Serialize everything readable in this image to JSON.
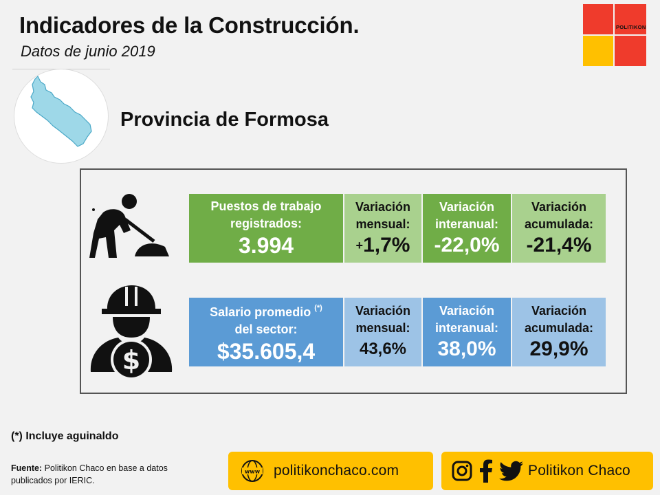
{
  "header": {
    "title": "Indicadores de la Construcción.",
    "subtitle": "Datos de junio 2019"
  },
  "logo": {
    "brand": "POLITIKON"
  },
  "province": "Provincia de Formosa",
  "employment": {
    "main_label_line1": "Puestos de trabajo",
    "main_label_line2": "registrados:",
    "main_value": "3.994",
    "monthly_label_line1": "Variación",
    "monthly_label_line2": "mensual:",
    "monthly_sign": "+",
    "monthly_value": "1,7%",
    "yoy_label_line1": "Variación",
    "yoy_label_line2": "interanual:",
    "yoy_value": "-22,0%",
    "ytd_label_line1": "Variación",
    "ytd_label_line2": "acumulada:",
    "ytd_value": "-21,4%"
  },
  "salary": {
    "main_label_line1": "Salario promedio",
    "footnote_mark": "(*)",
    "main_label_line2": "del sector:",
    "main_value": "$35.605,4",
    "monthly_label_line1": "Variación",
    "monthly_label_line2": "mensual:",
    "monthly_value": "43,6%",
    "yoy_label_line1": "Variación",
    "yoy_label_line2": "interanual:",
    "yoy_value": "38,0%",
    "ytd_label_line1": "Variación",
    "ytd_label_line2": "acumulada:",
    "ytd_value": "29,9%"
  },
  "footnote": "(*) Incluye aguinaldo",
  "source": {
    "label": "Fuente:",
    "text": "Politikon Chaco en base a datos publicados por IERIC."
  },
  "links": {
    "website": "politikonchaco.com",
    "social_name": "Politikon Chaco"
  },
  "icons": [
    "formosa-map-icon",
    "construction-worker-icon",
    "worker-salary-icon",
    "www-globe-icon",
    "instagram-icon",
    "facebook-icon",
    "twitter-icon"
  ],
  "colors": {
    "green_main": "#70ad47",
    "green_light": "#a9d18e",
    "blue_main": "#5b9bd5",
    "blue_light": "#9dc3e6",
    "red": "#ef3b2c",
    "yellow": "#ffc000"
  }
}
